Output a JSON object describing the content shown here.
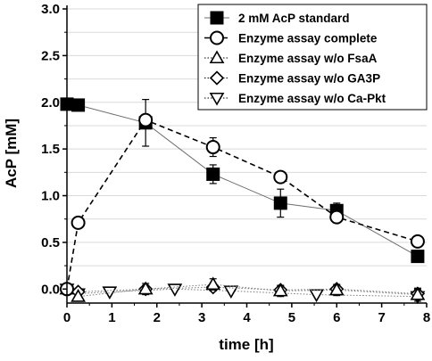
{
  "chart_data": {
    "type": "line",
    "title": "",
    "xlabel": "time [h]",
    "ylabel": "AcP [mM]",
    "xlim": [
      0,
      8
    ],
    "ylim": [
      -0.15,
      3.0
    ],
    "xticks": [
      0,
      1,
      2,
      3,
      4,
      5,
      6,
      7,
      8
    ],
    "yticks": [
      0.0,
      0.5,
      1.0,
      1.5,
      2.0,
      2.5,
      3.0
    ],
    "xtick_labels": [
      "0",
      "1",
      "2",
      "3",
      "4",
      "5",
      "6",
      "7",
      "8"
    ],
    "ytick_labels": [
      "0.0",
      "0.5",
      "1.0",
      "1.5",
      "2.0",
      "2.5",
      "3.0"
    ],
    "grid": "horizontal",
    "legend_position": "top-right",
    "series": [
      {
        "name": "2 mM AcP standard",
        "marker": "filled-square",
        "line": "solid",
        "color": "#000000",
        "x": [
          0,
          0.25,
          1.75,
          3.25,
          4.75,
          6.0,
          7.8
        ],
        "y": [
          1.98,
          1.97,
          1.78,
          1.23,
          0.92,
          0.84,
          0.35
        ],
        "err": [
          0.0,
          0.0,
          0.25,
          0.1,
          0.15,
          0.08,
          0.0
        ]
      },
      {
        "name": "Enzyme assay complete",
        "marker": "open-circle",
        "line": "dashed",
        "color": "#000000",
        "x": [
          0,
          0.25,
          1.75,
          3.25,
          4.75,
          6.0,
          7.8
        ],
        "y": [
          0.0,
          0.71,
          1.81,
          1.52,
          1.2,
          0.77,
          0.51
        ],
        "err": [
          0.0,
          0.0,
          0.05,
          0.1,
          0.0,
          0.05,
          0.0
        ]
      },
      {
        "name": "Enzyme assay w/o FsaA",
        "marker": "open-triangle-up",
        "line": "dotted",
        "color": "#555555",
        "x": [
          0,
          0.25,
          1.75,
          3.25,
          4.75,
          6.0,
          7.8
        ],
        "y": [
          0.0,
          -0.08,
          0.0,
          0.05,
          -0.02,
          -0.01,
          -0.06
        ],
        "err": [
          0.0,
          0.0,
          0.06,
          0.06,
          0.06,
          0.06,
          0.07
        ]
      },
      {
        "name": "Enzyme assay w/o GA3P",
        "marker": "open-diamond",
        "line": "dotted",
        "color": "#555555",
        "x": [
          0,
          0.25,
          1.75,
          3.25,
          4.75,
          6.0,
          7.8
        ],
        "y": [
          0.0,
          -0.03,
          0.0,
          0.02,
          -0.01,
          0.0,
          -0.05
        ],
        "err": [
          0.0,
          0.0,
          0.04,
          0.04,
          0.04,
          0.04,
          0.05
        ]
      },
      {
        "name": "Enzyme assay w/o Ca-Pkt",
        "marker": "open-triangle-down",
        "line": "dotted",
        "color": "#555555",
        "x": [
          0,
          0.25,
          0.95,
          2.4,
          3.65,
          5.55,
          7.8
        ],
        "y": [
          0.0,
          -0.05,
          -0.03,
          0.0,
          -0.02,
          -0.06,
          -0.08
        ],
        "err": [
          0.0,
          0.0,
          0.0,
          0.0,
          0.0,
          0.0,
          0.0
        ]
      }
    ]
  }
}
